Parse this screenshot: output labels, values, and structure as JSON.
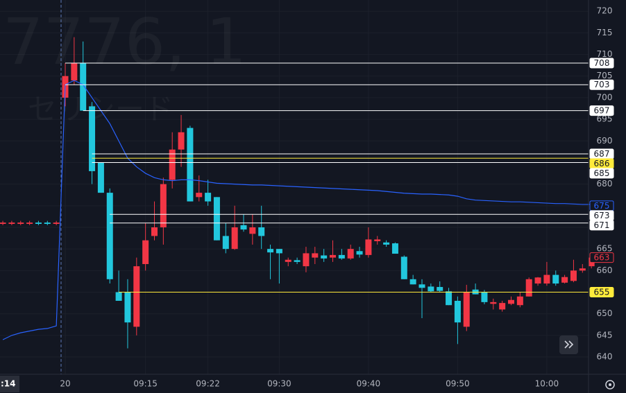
{
  "chart_data": {
    "type": "candlestick",
    "watermark": {
      "symbol": "7776, 1",
      "name": "セリシード"
    },
    "categories": [
      ":14",
      null,
      null,
      null,
      null,
      null,
      null,
      "20",
      null,
      null,
      null,
      null,
      null,
      null,
      null,
      null,
      "09:15",
      null,
      null,
      null,
      null,
      null,
      null,
      "09:22",
      null,
      null,
      null,
      null,
      null,
      null,
      null,
      "09:30",
      null,
      null,
      null,
      null,
      null,
      null,
      null,
      null,
      null,
      "09:40",
      null,
      null,
      null,
      null,
      null,
      null,
      null,
      null,
      null,
      "09:50",
      null,
      null,
      null,
      null,
      null,
      null,
      null,
      null,
      null,
      "10:00",
      null,
      null,
      null,
      null,
      null
    ],
    "open": [
      670.8,
      670.8,
      670.8,
      670.8,
      671.1,
      671.1,
      670.8,
      700,
      704,
      708,
      698,
      685,
      678,
      655,
      655,
      647,
      661.5,
      668,
      670,
      681,
      688,
      693,
      677,
      678,
      677,
      668,
      665,
      670.5,
      668.5,
      670,
      665,
      665,
      662,
      662.4,
      661,
      663,
      663.5,
      663,
      663.6,
      662.8,
      664.5,
      663.6,
      666.8,
      666.5,
      666.3,
      663.2,
      658,
      656.8,
      656.3,
      656.2,
      655.2,
      653,
      647,
      655.6,
      655,
      652.3,
      651,
      652.3,
      652,
      654,
      657,
      657,
      659,
      657.2,
      657.6,
      660,
      661
    ],
    "high": [
      671.5,
      671.5,
      671.5,
      671.5,
      671.5,
      671.5,
      671.5,
      708,
      714,
      713,
      699,
      685,
      679,
      660,
      658,
      663,
      671,
      676,
      681.5,
      692,
      696,
      693.5,
      682,
      681,
      677,
      671,
      675,
      673,
      673,
      675,
      666,
      665,
      663,
      663,
      665.5,
      665.5,
      665,
      667,
      665,
      666,
      665.5,
      670,
      668,
      667,
      666.5,
      663.5,
      659,
      658,
      657,
      657.5,
      656,
      654,
      656.7,
      657,
      655.5,
      653.5,
      653,
      654,
      655,
      658.4,
      658.5,
      662,
      660,
      659,
      662.5,
      661.5,
      663.5
    ],
    "low": [
      670.5,
      670.5,
      670.5,
      670.5,
      670.5,
      670.5,
      670.5,
      698,
      703,
      697,
      680,
      678,
      657,
      653,
      642,
      645,
      660,
      667,
      666,
      679,
      684,
      676,
      676,
      675,
      667,
      664,
      664.8,
      669,
      666,
      665,
      658,
      657,
      661,
      661.5,
      659.6,
      661.5,
      662,
      662,
      662.5,
      662.5,
      663,
      663,
      666,
      665.5,
      663.9,
      658,
      656.8,
      649,
      655,
      655,
      652,
      643,
      646,
      654.5,
      652.2,
      651,
      650.5,
      652,
      651.5,
      654,
      656.5,
      656.5,
      656.5,
      657,
      657.3,
      659.5,
      660.5
    ],
    "close": [
      671.1,
      671.1,
      671.1,
      671.1,
      670.8,
      670.8,
      671.1,
      705,
      708,
      697,
      683,
      678,
      658,
      653,
      648,
      661,
      667,
      670,
      680,
      688,
      692,
      676,
      678,
      676,
      667,
      665,
      670,
      669.5,
      670,
      668,
      664.2,
      664,
      662.5,
      662,
      664,
      664,
      662.8,
      663.6,
      662.8,
      665,
      663.7,
      667.2,
      667.2,
      666,
      663.9,
      658,
      656.8,
      656,
      655.2,
      655.3,
      652,
      648,
      655,
      654.5,
      652.7,
      652.7,
      652.5,
      653.2,
      654,
      658,
      658.4,
      659,
      657,
      658.5,
      660,
      660.5,
      663
    ],
    "up_color": "#f23645",
    "down_color": "#22c7dd",
    "vwap": {
      "color": "#2962ff",
      "values": [
        644,
        645,
        645.6,
        646,
        646.4,
        646.6,
        647.2,
        703,
        704,
        703,
        700,
        697,
        694,
        690,
        686,
        684,
        682.5,
        681.5,
        681,
        680.8,
        681,
        681,
        680.8,
        680.5,
        680.2,
        680.1,
        680,
        679.9,
        679.8,
        679.8,
        679.7,
        679.6,
        679.5,
        679.4,
        679.3,
        679.2,
        679.1,
        679,
        678.9,
        678.8,
        678.7,
        678.6,
        678.5,
        678.3,
        678.1,
        677.9,
        677.8,
        677.7,
        677.7,
        677.6,
        677.5,
        677.2,
        676.6,
        676.3,
        676.2,
        676.1,
        676,
        675.9,
        675.9,
        675.8,
        675.7,
        675.6,
        675.5,
        675.5,
        675.4,
        675.3,
        675.3
      ]
    },
    "levels": [
      {
        "value": 708,
        "color": "#ffffff",
        "line": true
      },
      {
        "value": 703,
        "color": "#ffffff",
        "line": true
      },
      {
        "value": 697,
        "color": "#ffffff",
        "line": true
      },
      {
        "value": 687,
        "color": "#ffffff",
        "line": true
      },
      {
        "value": 686,
        "color": "#ffeb3b",
        "line": true
      },
      {
        "value": 685,
        "color": "#ffffff",
        "line": true
      },
      {
        "value": 675,
        "color": "#2962ff",
        "line": false
      },
      {
        "value": 673,
        "color": "#ffffff",
        "line": true
      },
      {
        "value": 671,
        "color": "#ffffff",
        "line": true
      },
      {
        "value": 663,
        "color": "#f23645",
        "line": false
      },
      {
        "value": 655,
        "color": "#ffeb3b",
        "line": true
      }
    ],
    "ylim": [
      636,
      722.6
    ],
    "yticks": [
      640,
      645,
      650,
      655,
      660,
      665,
      670,
      675,
      680,
      685,
      690,
      695,
      700,
      705,
      710,
      715,
      720
    ],
    "grid": true
  }
}
